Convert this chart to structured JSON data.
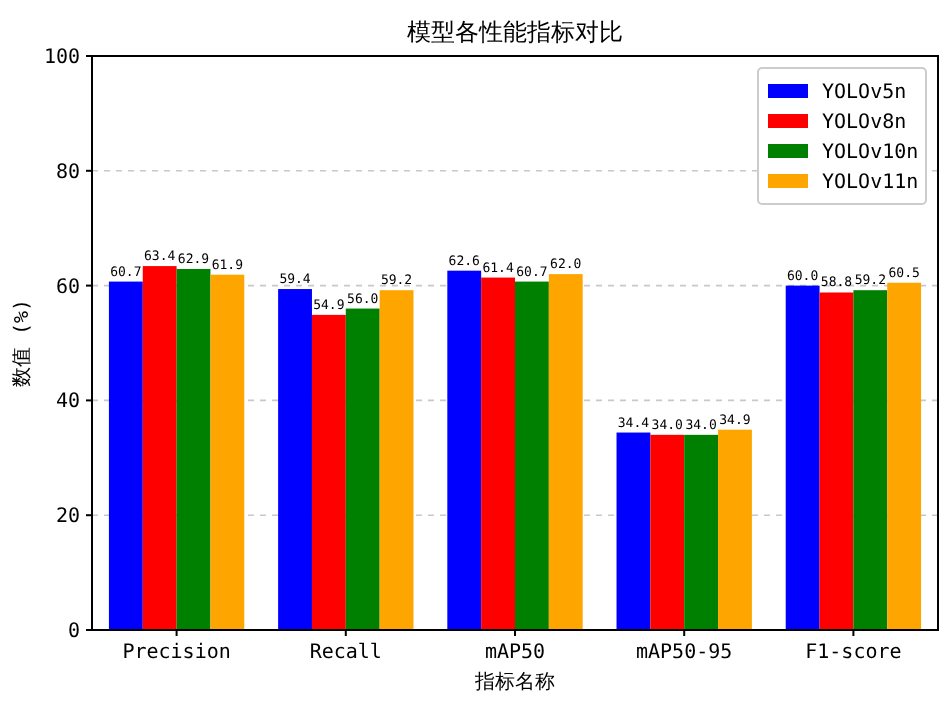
{
  "chart_data": {
    "type": "bar",
    "title": "模型各性能指标对比",
    "xlabel": "指标名称",
    "ylabel": "数值 (%)",
    "categories": [
      "Precision",
      "Recall",
      "mAP50",
      "mAP50-95",
      "F1-score"
    ],
    "series": [
      {
        "name": "YOLOv5n",
        "color": "#0000ff",
        "values": [
          60.7,
          59.4,
          62.6,
          34.4,
          60.0
        ],
        "value_labels": [
          "60.7",
          "59.4",
          "62.6",
          "34.4",
          "60.0"
        ]
      },
      {
        "name": "YOLOv8n",
        "color": "#ff0000",
        "values": [
          63.4,
          54.9,
          61.4,
          34.0,
          58.8
        ],
        "value_labels": [
          "63.4",
          "54.9",
          "61.4",
          "34.0",
          "58.8"
        ]
      },
      {
        "name": "YOLOv10n",
        "color": "#008000",
        "values": [
          62.9,
          56.0,
          60.7,
          34.0,
          59.2
        ],
        "value_labels": [
          "62.9",
          "56.0",
          "60.7",
          "34.0",
          "59.2"
        ]
      },
      {
        "name": "YOLOv11n",
        "color": "#ffa500",
        "values": [
          61.9,
          59.2,
          62.0,
          34.9,
          60.5
        ],
        "value_labels": [
          "61.9",
          "59.2",
          "62.0",
          "34.9",
          "60.5"
        ]
      }
    ],
    "ylim": [
      0,
      100
    ],
    "yticks": [
      0,
      20,
      40,
      60,
      80,
      100
    ],
    "grid": "y",
    "legend": "top right"
  }
}
